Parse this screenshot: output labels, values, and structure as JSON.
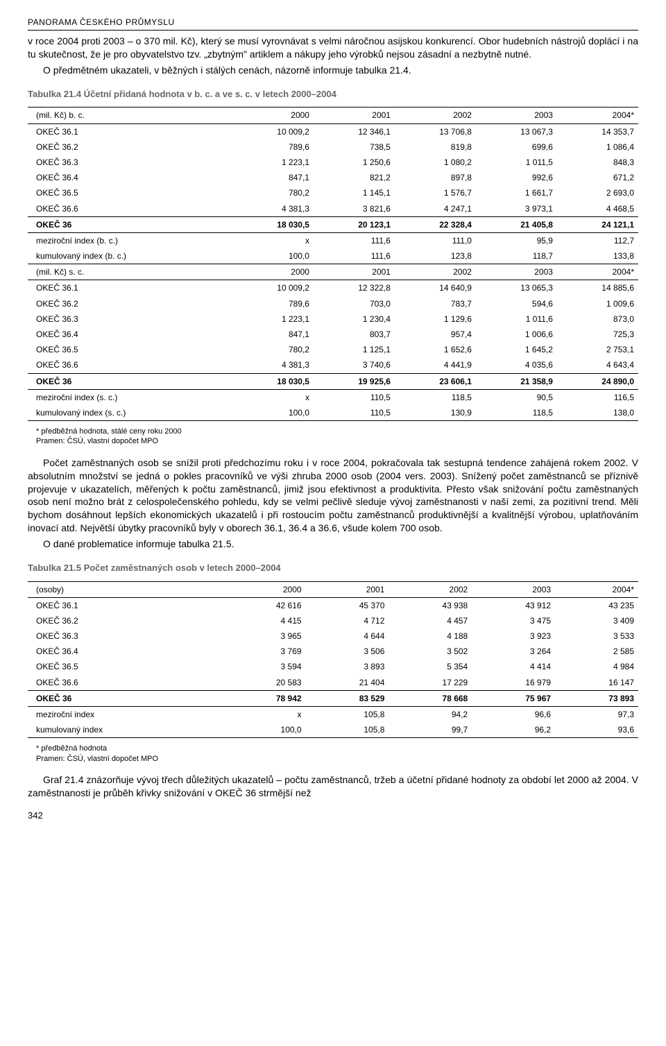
{
  "header": "PANORAMA ČESKÉHO PRŮMYSLU",
  "para1": "v roce 2004 proti 2003 – o 370 mil. Kč), který se musí vyrovnávat s velmi náročnou asijskou konkurencí. Obor hudebních nástrojů doplácí i na tu skutečnost, že je pro obyvatelstvo tzv. „zbytným\" artiklem a nákupy jeho výrobků nejsou zásadní a nezbytně nutné.",
  "para2": "O předmětném ukazateli, v běžných i stálých cenách, názorně informuje tabulka 21.4.",
  "table1": {
    "caption": "Tabulka 21.4 Účetní přidaná hodnota v b. c. a ve s. c. v letech 2000–2004",
    "hdr1": "(mil. Kč) b. c.",
    "hdr2": "(mil. Kč) s. c.",
    "cols": [
      "2000",
      "2001",
      "2002",
      "2003",
      "2004*"
    ],
    "bc": {
      "r1": [
        "OKEČ 36.1",
        "10 009,2",
        "12 346,1",
        "13 706,8",
        "13 067,3",
        "14 353,7"
      ],
      "r2": [
        "OKEČ 36.2",
        "789,6",
        "738,5",
        "819,8",
        "699,6",
        "1 086,4"
      ],
      "r3": [
        "OKEČ 36.3",
        "1 223,1",
        "1 250,6",
        "1 080,2",
        "1 011,5",
        "848,3"
      ],
      "r4": [
        "OKEČ 36.4",
        "847,1",
        "821,2",
        "897,8",
        "992,6",
        "671,2"
      ],
      "r5": [
        "OKEČ 36.5",
        "780,2",
        "1 145,1",
        "1 576,7",
        "1 661,7",
        "2 693,0"
      ],
      "r6": [
        "OKEČ 36.6",
        "4 381,3",
        "3 821,6",
        "4 247,1",
        "3 973,1",
        "4 468,5"
      ],
      "tot": [
        "OKEČ 36",
        "18 030,5",
        "20 123,1",
        "22 328,4",
        "21 405,8",
        "24 121,1"
      ],
      "mi": [
        "meziroční index (b. c.)",
        "x",
        "111,6",
        "111,0",
        "95,9",
        "112,7"
      ],
      "ki": [
        "kumulovaný index (b. c.)",
        "100,0",
        "111,6",
        "123,8",
        "118,7",
        "133,8"
      ]
    },
    "sc": {
      "r1": [
        "OKEČ 36.1",
        "10 009,2",
        "12 322,8",
        "14 640,9",
        "13 065,3",
        "14 885,6"
      ],
      "r2": [
        "OKEČ 36.2",
        "789,6",
        "703,0",
        "783,7",
        "594,6",
        "1 009,6"
      ],
      "r3": [
        "OKEČ 36.3",
        "1 223,1",
        "1 230,4",
        "1 129,6",
        "1 011,6",
        "873,0"
      ],
      "r4": [
        "OKEČ 36.4",
        "847,1",
        "803,7",
        "957,4",
        "1 006,6",
        "725,3"
      ],
      "r5": [
        "OKEČ 36.5",
        "780,2",
        "1 125,1",
        "1 652,6",
        "1 645,2",
        "2 753,1"
      ],
      "r6": [
        "OKEČ 36.6",
        "4 381,3",
        "3 740,6",
        "4 441,9",
        "4 035,6",
        "4 643,4"
      ],
      "tot": [
        "OKEČ 36",
        "18 030,5",
        "19 925,6",
        "23 606,1",
        "21 358,9",
        "24 890,0"
      ],
      "mi": [
        "meziroční index (s. c.)",
        "x",
        "110,5",
        "118,5",
        "90,5",
        "116,5"
      ],
      "ki": [
        "kumulovaný index (s. c.)",
        "100,0",
        "110,5",
        "130,9",
        "118,5",
        "138,0"
      ]
    },
    "foot1": "* předběžná hodnota, stálé ceny roku 2000",
    "foot2": "Pramen: ČSÚ, vlastní dopočet MPO"
  },
  "para3": "Počet zaměstnaných osob se snížil proti předchozímu roku i v roce 2004, pokračovala tak sestupná tendence zahájená rokem 2002. V absolutním množství se jedná o pokles pracovníků ve výši zhruba 2000 osob (2004 vers. 2003). Snížený počet zaměstnanců se příznivě projevuje v ukazatelích, měřených k počtu zaměstnanců, jimiž jsou efektivnost a produktivita. Přesto však snižování počtu zaměstnaných osob není možno brát z celospolečenského pohledu, kdy se velmi pečlivě sleduje vývoj zaměstnanosti v naší zemi, za pozitivní trend. Měli bychom dosáhnout lepších ekonomických ukazatelů i při rostoucím počtu zaměstnanců produktivnější a kvalitnější výrobou, uplatňováním inovací atd. Největší úbytky pracovníků byly v oborech 36.1, 36.4 a 36.6, všude kolem 700 osob.",
  "para4": "O dané problematice informuje tabulka 21.5.",
  "table2": {
    "caption": "Tabulka 21.5 Počet zaměstnaných osob v letech 2000–2004",
    "hdr": "(osoby)",
    "cols": [
      "2000",
      "2001",
      "2002",
      "2003",
      "2004*"
    ],
    "r1": [
      "OKEČ 36.1",
      "42 616",
      "45 370",
      "43 938",
      "43 912",
      "43 235"
    ],
    "r2": [
      "OKEČ 36.2",
      "4 415",
      "4 712",
      "4 457",
      "3 475",
      "3 409"
    ],
    "r3": [
      "OKEČ 36.3",
      "3 965",
      "4 644",
      "4 188",
      "3 923",
      "3 533"
    ],
    "r4": [
      "OKEČ 36.4",
      "3 769",
      "3 506",
      "3 502",
      "3 264",
      "2 585"
    ],
    "r5": [
      "OKEČ 36.5",
      "3 594",
      "3 893",
      "5 354",
      "4 414",
      "4 984"
    ],
    "r6": [
      "OKEČ 36.6",
      "20 583",
      "21 404",
      "17 229",
      "16 979",
      "16 147"
    ],
    "tot": [
      "OKEČ 36",
      "78 942",
      "83 529",
      "78 668",
      "75 967",
      "73 893"
    ],
    "mi": [
      "meziroční index",
      "x",
      "105,8",
      "94,2",
      "96,6",
      "97,3"
    ],
    "ki": [
      "kumulovaný index",
      "100,0",
      "105,8",
      "99,7",
      "96,2",
      "93,6"
    ],
    "foot1": "* předběžná hodnota",
    "foot2": "Pramen: ČSÚ, vlastní dopočet MPO"
  },
  "para5": "Graf 21.4 znázorňuje vývoj třech důležitých ukazatelů – počtu zaměstnanců, tržeb a účetní přidané hodnoty za období let 2000 až 2004. V zaměstnanosti je průběh křivky snižování v OKEČ 36 strmější než",
  "pageNum": "342"
}
